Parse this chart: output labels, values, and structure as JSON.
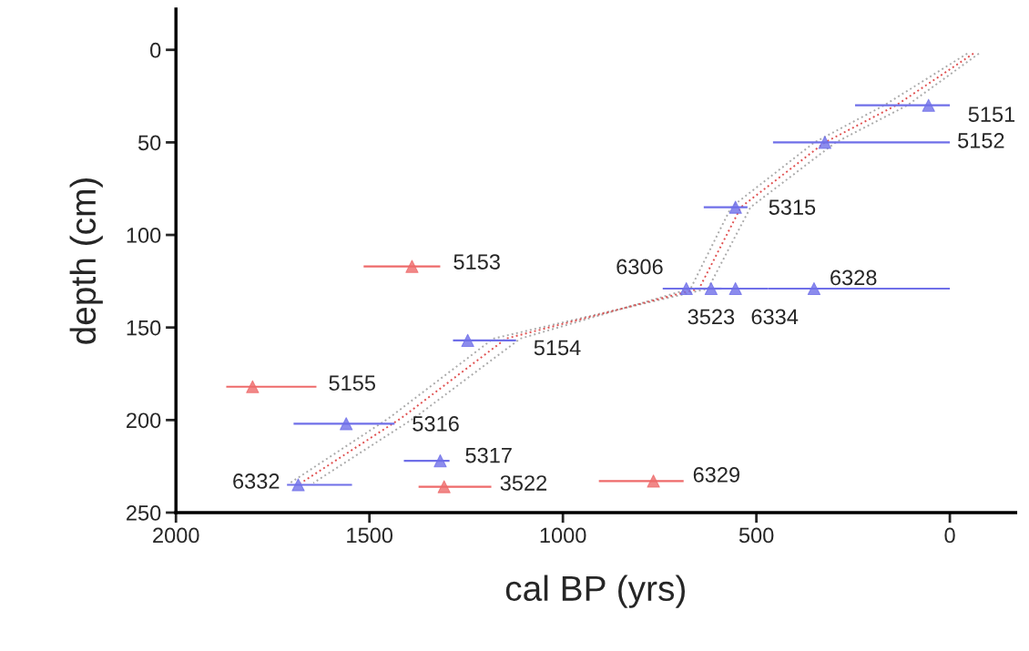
{
  "chart_data": {
    "type": "scatter",
    "xlabel": "cal BP (yrs)",
    "ylabel": "depth (cm)",
    "xlim": [
      2000,
      -170
    ],
    "ylim": [
      250,
      -22
    ],
    "xticks": [
      2000,
      1500,
      1000,
      500,
      0
    ],
    "yticks": [
      0,
      50,
      100,
      150,
      200,
      250
    ],
    "grid": false,
    "series": [
      {
        "type": "line",
        "color": "#aaaaaa",
        "line_style": "dotted",
        "marker": "none",
        "x": [
          -45,
          170,
          350,
          565,
          670,
          1110,
          1385,
          1645
        ],
        "values": [
          2,
          30,
          50,
          85,
          129,
          156,
          199,
          234
        ]
      },
      {
        "type": "line",
        "color": "#aaaaaa",
        "line_style": "dotted",
        "marker": "none",
        "x": [
          -75,
          110,
          295,
          515,
          625,
          1180,
          1450,
          1705
        ],
        "values": [
          2,
          30,
          50,
          85,
          129,
          156,
          199,
          234
        ]
      },
      {
        "type": "line",
        "color": "#e05050",
        "line_style": "dotted",
        "marker": "none",
        "x": [
          -61,
          139,
          323,
          540,
          648,
          1147,
          1418,
          1677
        ],
        "values": [
          2,
          30,
          50,
          85,
          129,
          156,
          199,
          234
        ]
      },
      {
        "color": "#6f6fe8",
        "marker": "triangle",
        "x": [
          55,
          323,
          554,
          681,
          617,
          554,
          351,
          1246,
          1560,
          1317,
          1684
        ],
        "values": [
          30,
          50,
          85,
          129,
          129,
          129,
          129,
          157,
          202,
          222,
          235
        ],
        "xerrors": [
          [
            0,
            245
          ],
          [
            0,
            457
          ],
          [
            523,
            636
          ],
          [
            640,
            742
          ],
          [
            590,
            660
          ],
          [
            470,
            600
          ],
          [
            0,
            470
          ],
          [
            1121,
            1284
          ],
          [
            1435,
            1696
          ],
          [
            1293,
            1411
          ],
          [
            1545,
            1713
          ]
        ]
      },
      {
        "color": "#ee6a6a",
        "marker": "triangle",
        "x": [
          1390,
          1802,
          1307,
          766
        ],
        "values": [
          117,
          182,
          236,
          233
        ],
        "xerrors": [
          [
            1317,
            1515
          ],
          [
            1637,
            1870
          ],
          [
            1185,
            1373
          ],
          [
            688,
            907
          ]
        ]
      }
    ],
    "annotations": [
      {
        "text": "5151",
        "x": 55,
        "y": 30
      },
      {
        "text": "5152",
        "x": 0,
        "y": 50
      },
      {
        "text": "5315",
        "x": 554,
        "y": 85
      },
      {
        "text": "6306",
        "x": 681,
        "y": 129
      },
      {
        "text": "3523",
        "x": 617,
        "y": 129
      },
      {
        "text": "6334",
        "x": 554,
        "y": 129
      },
      {
        "text": "6328",
        "x": 351,
        "y": 129
      },
      {
        "text": "5153",
        "x": 1390,
        "y": 117
      },
      {
        "text": "5154",
        "x": 1121,
        "y": 157
      },
      {
        "text": "5155",
        "x": 1637,
        "y": 182
      },
      {
        "text": "5316",
        "x": 1435,
        "y": 202
      },
      {
        "text": "5317",
        "x": 1317,
        "y": 222
      },
      {
        "text": "6332",
        "x": 1684,
        "y": 235
      },
      {
        "text": "3522",
        "x": 1307,
        "y": 236
      },
      {
        "text": "6329",
        "x": 766,
        "y": 233
      }
    ]
  }
}
